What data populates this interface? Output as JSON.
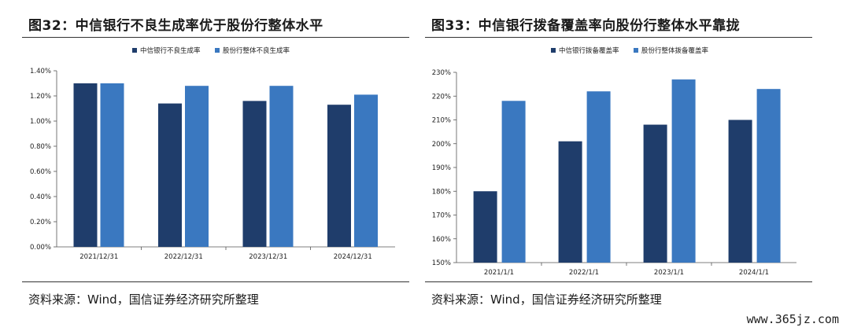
{
  "charts": [
    {
      "heading": "图32：中信银行不良生成率优于股份行整体水平",
      "source": "资料来源：Wind，国信证券经济研究所整理"
    },
    {
      "heading": "图33：中信银行拨备覆盖率向股份行整体水平靠拢",
      "source": "资料来源：Wind，国信证券经济研究所整理"
    }
  ],
  "chart_data": [
    {
      "type": "bar",
      "categories": [
        "2021/12/31",
        "2022/12/31",
        "2023/12/31",
        "2024/12/31"
      ],
      "series": [
        {
          "name": "中信银行不良生成率",
          "values": [
            1.3,
            1.14,
            1.16,
            1.13
          ],
          "color": "#1f3d6b"
        },
        {
          "name": "股份行整体不良生成率",
          "values": [
            1.3,
            1.28,
            1.28,
            1.21
          ],
          "color": "#3a78c0"
        }
      ],
      "ylim": [
        0,
        1.4
      ],
      "yticks": [
        "0.00%",
        "0.20%",
        "0.40%",
        "0.60%",
        "0.80%",
        "1.00%",
        "1.20%",
        "1.40%"
      ],
      "legend": "top-center",
      "grid": false
    },
    {
      "type": "bar",
      "categories": [
        "2021/1/1",
        "2022/1/1",
        "2023/1/1",
        "2024/1/1"
      ],
      "series": [
        {
          "name": "中信银行拨备覆盖率",
          "values": [
            180,
            201,
            208,
            210
          ],
          "color": "#1f3d6b"
        },
        {
          "name": "股份行整体拨备覆盖率",
          "values": [
            218,
            222,
            227,
            223
          ],
          "color": "#3a78c0"
        }
      ],
      "ylim": [
        150,
        230
      ],
      "yticks": [
        "150%",
        "160%",
        "170%",
        "180%",
        "190%",
        "200%",
        "210%",
        "220%",
        "230%"
      ],
      "legend": "top-center",
      "grid": false
    }
  ],
  "watermark": "www.365jz.com"
}
